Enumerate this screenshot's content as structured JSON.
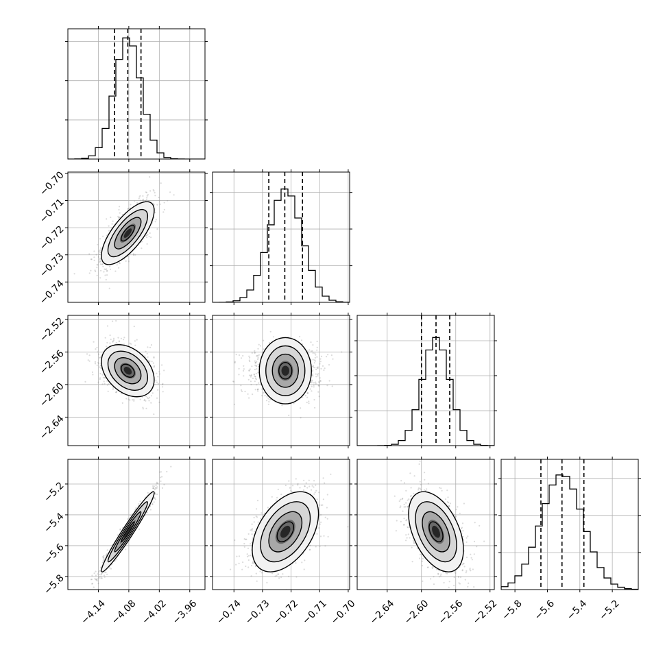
{
  "chart_data": {
    "type": "corner",
    "grid": true,
    "n_params": 4,
    "params": [
      {
        "range": [
          -4.2,
          -3.93
        ],
        "ticks": [
          -4.14,
          -4.08,
          -4.02,
          -3.96
        ],
        "tick_labels": [
          "−4.14",
          "−4.08",
          "−4.02",
          "−3.96"
        ],
        "quantiles": [
          -4.108,
          -4.082,
          -4.056
        ],
        "mean": -4.082,
        "sd": 0.026,
        "hist_peak_frac": 0.93
      },
      {
        "range": [
          -0.7475,
          -0.6995
        ],
        "ticks": [
          -0.74,
          -0.73,
          -0.72,
          -0.71,
          -0.7
        ],
        "tick_labels": [
          "−0.74",
          "−0.73",
          "−0.72",
          "−0.71",
          "−0.70"
        ],
        "quantiles": [
          -0.7278,
          -0.7222,
          -0.716
        ],
        "mean": -0.722,
        "sd": 0.0058,
        "hist_peak_frac": 0.87
      },
      {
        "range": [
          -2.675,
          -2.515
        ],
        "ticks": [
          -2.64,
          -2.6,
          -2.56,
          -2.52
        ],
        "tick_labels": [
          "−2.64",
          "−2.60",
          "−2.56",
          "−2.52"
        ],
        "quantiles": [
          -2.6,
          -2.583,
          -2.567
        ],
        "mean": -2.583,
        "sd": 0.016,
        "hist_peak_frac": 0.83
      },
      {
        "range": [
          -5.885,
          -5.04
        ],
        "ticks": [
          -5.8,
          -5.6,
          -5.4,
          -5.2
        ],
        "tick_labels": [
          "−5.8",
          "−5.6",
          "−5.4",
          "−5.2"
        ],
        "quantiles": [
          -5.64,
          -5.51,
          -5.375
        ],
        "mean": -5.51,
        "sd": 0.13,
        "hist_peak_frac": 0.88
      }
    ],
    "correlations": {
      "1_0": 0.72,
      "2_0": -0.35,
      "2_1": 0.0,
      "3_0": 0.97,
      "3_1": 0.45,
      "3_2": -0.45
    },
    "contour_levels_sigma": [
      0.5,
      1.0,
      1.5,
      2.0
    ],
    "colors": {
      "line": "#000000",
      "grid": "#b0b0b0",
      "points": "#7f7f7f",
      "density_dark": "#000000",
      "density_light": "#ffffff"
    }
  }
}
